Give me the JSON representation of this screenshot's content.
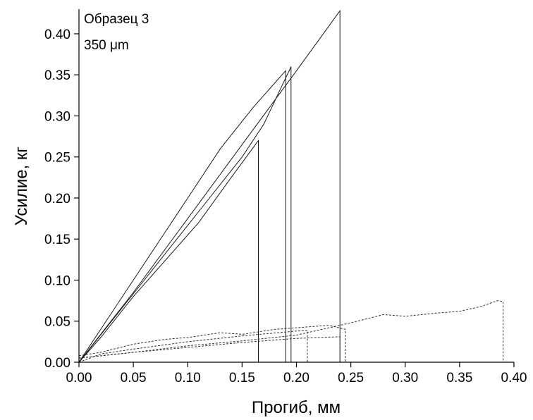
{
  "chart_data": {
    "type": "line",
    "title": "",
    "annotations": [
      "Образец 3",
      "350 μm"
    ],
    "xlabel": "Прогиб, мм",
    "ylabel": "Усилие, кг",
    "xlim": [
      0.0,
      0.4
    ],
    "ylim": [
      0.0,
      0.43
    ],
    "x_ticks": [
      "0.00",
      "0.05",
      "0.10",
      "0.15",
      "0.20",
      "0.25",
      "0.30",
      "0.35",
      "0.40"
    ],
    "y_ticks": [
      "0.00",
      "0.05",
      "0.10",
      "0.15",
      "0.20",
      "0.25",
      "0.30",
      "0.35",
      "0.40"
    ],
    "grid": false,
    "legend": "none",
    "series": [
      {
        "style": "solid",
        "x": [
          0.0,
          0.02,
          0.05,
          0.08,
          0.1,
          0.13,
          0.16,
          0.19,
          0.19,
          0.2
        ],
        "y": [
          0.0,
          0.04,
          0.1,
          0.16,
          0.2,
          0.26,
          0.31,
          0.355,
          0.0,
          0.0
        ]
      },
      {
        "style": "solid",
        "x": [
          0.0,
          0.02,
          0.05,
          0.08,
          0.11,
          0.14,
          0.165,
          0.165,
          0.17
        ],
        "y": [
          0.0,
          0.03,
          0.08,
          0.125,
          0.17,
          0.225,
          0.27,
          0.0,
          0.0
        ]
      },
      {
        "style": "solid",
        "x": [
          0.0,
          0.03,
          0.06,
          0.09,
          0.12,
          0.15,
          0.17,
          0.195,
          0.195,
          0.2
        ],
        "y": [
          0.0,
          0.05,
          0.1,
          0.15,
          0.2,
          0.25,
          0.29,
          0.36,
          0.0,
          0.0
        ]
      },
      {
        "style": "solid",
        "x": [
          0.0,
          0.05,
          0.1,
          0.15,
          0.2,
          0.24,
          0.24,
          0.245
        ],
        "y": [
          0.0,
          0.085,
          0.175,
          0.265,
          0.355,
          0.428,
          0.0,
          0.0
        ]
      },
      {
        "style": "dashed",
        "x": [
          0.0,
          0.02,
          0.05,
          0.1,
          0.15,
          0.2,
          0.21,
          0.21,
          0.22
        ],
        "y": [
          0.0,
          0.01,
          0.016,
          0.025,
          0.032,
          0.038,
          0.039,
          0.0,
          0.0
        ]
      },
      {
        "style": "dashed",
        "x": [
          0.0,
          0.05,
          0.1,
          0.15,
          0.2,
          0.24,
          0.24,
          0.245
        ],
        "y": [
          0.005,
          0.012,
          0.018,
          0.024,
          0.029,
          0.031,
          0.0,
          0.0
        ]
      },
      {
        "style": "dashed",
        "x": [
          0.0,
          0.02,
          0.05,
          0.08,
          0.1,
          0.13,
          0.15,
          0.18,
          0.2,
          0.23,
          0.245,
          0.245,
          0.25
        ],
        "y": [
          0.008,
          0.012,
          0.022,
          0.028,
          0.03,
          0.036,
          0.034,
          0.04,
          0.042,
          0.045,
          0.04,
          0.0,
          0.0
        ]
      },
      {
        "style": "dashed",
        "x": [
          0.0,
          0.05,
          0.1,
          0.15,
          0.2,
          0.24,
          0.25,
          0.28,
          0.3,
          0.33,
          0.35,
          0.37,
          0.385,
          0.39,
          0.39,
          0.395
        ],
        "y": [
          0.005,
          0.012,
          0.02,
          0.026,
          0.033,
          0.045,
          0.048,
          0.058,
          0.056,
          0.06,
          0.062,
          0.068,
          0.075,
          0.074,
          0.0,
          0.0
        ]
      }
    ]
  }
}
